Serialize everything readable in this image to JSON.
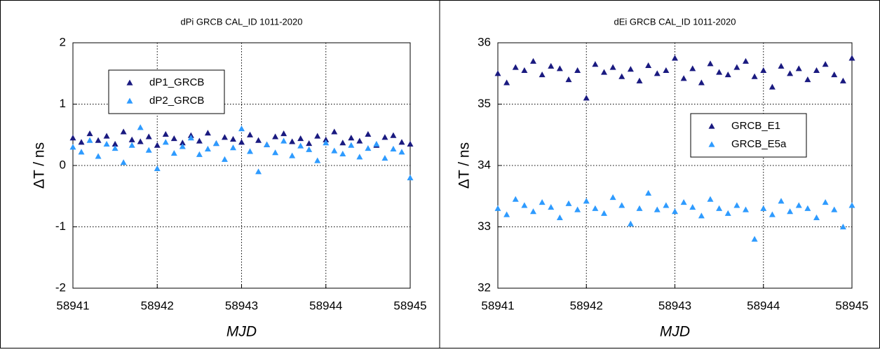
{
  "chart_data": [
    {
      "type": "scatter",
      "title": "dPi GRCB CAL_ID 1011-2020",
      "xlabel": "MJD",
      "ylabel": "ΔT / ns",
      "x": [
        58941,
        58941.1,
        58941.2,
        58941.3,
        58941.4,
        58941.5,
        58941.6,
        58941.7,
        58941.8,
        58941.9,
        58942,
        58942.1,
        58942.2,
        58942.3,
        58942.4,
        58942.5,
        58942.6,
        58942.7,
        58942.8,
        58942.9,
        58943,
        58943.1,
        58943.2,
        58943.3,
        58943.4,
        58943.5,
        58943.6,
        58943.7,
        58943.8,
        58943.9,
        58944,
        58944.1,
        58944.2,
        58944.3,
        58944.4,
        58944.5,
        58944.6,
        58944.7,
        58944.8,
        58944.9,
        58945
      ],
      "series": [
        {
          "name": "dP1_GRCB",
          "color": "#1a1a80",
          "values": [
            0.45,
            0.38,
            0.52,
            0.41,
            0.48,
            0.35,
            0.55,
            0.42,
            0.39,
            0.47,
            0.33,
            0.51,
            0.44,
            0.37,
            0.49,
            0.4,
            0.53,
            0.36,
            0.46,
            0.43,
            0.38,
            0.5,
            0.41,
            0.34,
            0.47,
            0.52,
            0.39,
            0.44,
            0.36,
            0.48,
            0.42,
            0.55,
            0.37,
            0.45,
            0.4,
            0.51,
            0.33,
            0.46,
            0.49,
            0.38,
            0.35
          ]
        },
        {
          "name": "dP2_GRCB",
          "color": "#2e9bff",
          "values": [
            0.3,
            0.22,
            0.41,
            0.15,
            0.35,
            0.28,
            0.05,
            0.33,
            0.62,
            0.25,
            -0.05,
            0.38,
            0.2,
            0.31,
            0.45,
            0.18,
            0.27,
            0.36,
            0.1,
            0.29,
            0.6,
            0.23,
            -0.1,
            0.34,
            0.21,
            0.4,
            0.16,
            0.32,
            0.26,
            0.08,
            0.37,
            0.24,
            0.19,
            0.33,
            0.14,
            0.28,
            0.35,
            0.12,
            0.27,
            0.22,
            -0.2
          ]
        }
      ],
      "xlim": [
        58941,
        58945
      ],
      "xticks": [
        58941,
        58942,
        58943,
        58944,
        58945
      ],
      "ylim": [
        -2,
        2
      ],
      "yticks": [
        -2,
        -1,
        0,
        1,
        2
      ],
      "grid": true,
      "legend": "upper-left"
    },
    {
      "type": "scatter",
      "title": "dEi GRCB CAL_ID 1011-2020",
      "xlabel": "MJD",
      "ylabel": "ΔT / ns",
      "x": [
        58941,
        58941.1,
        58941.2,
        58941.3,
        58941.4,
        58941.5,
        58941.6,
        58941.7,
        58941.8,
        58941.9,
        58942,
        58942.1,
        58942.2,
        58942.3,
        58942.4,
        58942.5,
        58942.6,
        58942.7,
        58942.8,
        58942.9,
        58943,
        58943.1,
        58943.2,
        58943.3,
        58943.4,
        58943.5,
        58943.6,
        58943.7,
        58943.8,
        58943.9,
        58944,
        58944.1,
        58944.2,
        58944.3,
        58944.4,
        58944.5,
        58944.6,
        58944.7,
        58944.8,
        58944.9,
        58945
      ],
      "series": [
        {
          "name": "GRCB_E1",
          "color": "#1a1a80",
          "values": [
            35.5,
            35.35,
            35.6,
            35.55,
            35.7,
            35.48,
            35.62,
            35.58,
            35.4,
            35.55,
            35.1,
            35.65,
            35.52,
            35.6,
            35.45,
            35.57,
            35.38,
            35.63,
            35.5,
            35.55,
            35.75,
            35.42,
            35.58,
            35.35,
            35.66,
            35.52,
            35.48,
            35.6,
            35.7,
            35.45,
            35.55,
            35.28,
            35.62,
            35.5,
            35.58,
            35.4,
            35.55,
            35.65,
            35.48,
            35.38,
            35.75
          ]
        },
        {
          "name": "GRCB_E5a",
          "color": "#2e9bff",
          "values": [
            33.3,
            33.2,
            33.45,
            33.35,
            33.25,
            33.4,
            33.32,
            33.15,
            33.38,
            33.28,
            33.42,
            33.3,
            33.22,
            33.48,
            33.35,
            33.05,
            33.3,
            33.55,
            33.28,
            33.35,
            33.25,
            33.4,
            33.32,
            33.18,
            33.45,
            33.3,
            33.22,
            33.35,
            33.28,
            32.8,
            33.3,
            33.2,
            33.42,
            33.25,
            33.35,
            33.3,
            33.15,
            33.4,
            33.28,
            33.0,
            33.35
          ]
        }
      ],
      "xlim": [
        58941,
        58945
      ],
      "xticks": [
        58941,
        58942,
        58943,
        58944,
        58945
      ],
      "ylim": [
        32,
        36
      ],
      "yticks": [
        32,
        33,
        34,
        35,
        36
      ],
      "grid": true,
      "legend": "upper-right"
    }
  ]
}
